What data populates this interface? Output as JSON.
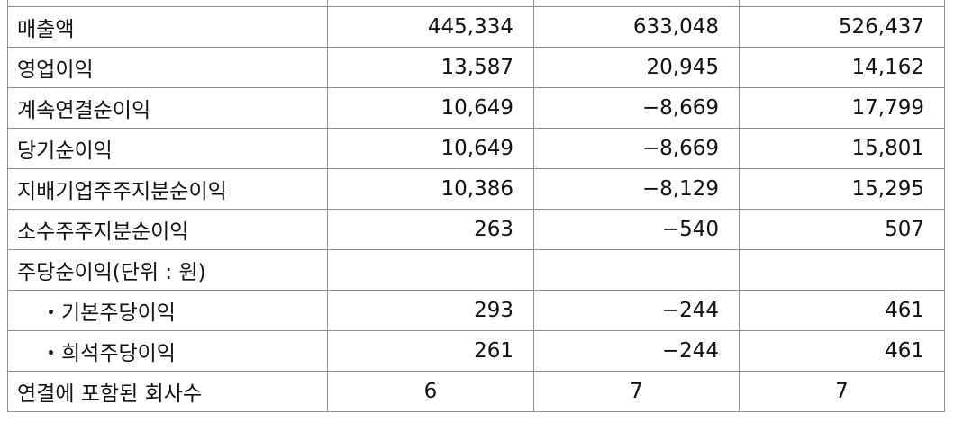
{
  "table": {
    "rows": [
      [
        "매출액",
        "445,334",
        "633,048",
        "526,437"
      ],
      [
        "영업이익",
        "13,587",
        "20,945",
        "14,162"
      ],
      [
        "계속연결순이익",
        "10,649",
        "−8,669",
        "17,799"
      ],
      [
        "당기순이익",
        "10,649",
        "−8,669",
        "15,801"
      ],
      [
        "지배기업주주지분순이익",
        "10,386",
        "−8,129",
        "15,295"
      ],
      [
        "소수주주지분순이익",
        "263",
        "−540",
        "507"
      ],
      [
        "주당순이익(단위 : 원)"
      ],
      [
        "・기본주당이익",
        "293",
        "−244",
        "461"
      ],
      [
        "・희석주당이익",
        "261",
        "−244",
        "461"
      ],
      [
        "연결에 포함된 회사수",
        "6",
        "7",
        "7"
      ]
    ]
  }
}
